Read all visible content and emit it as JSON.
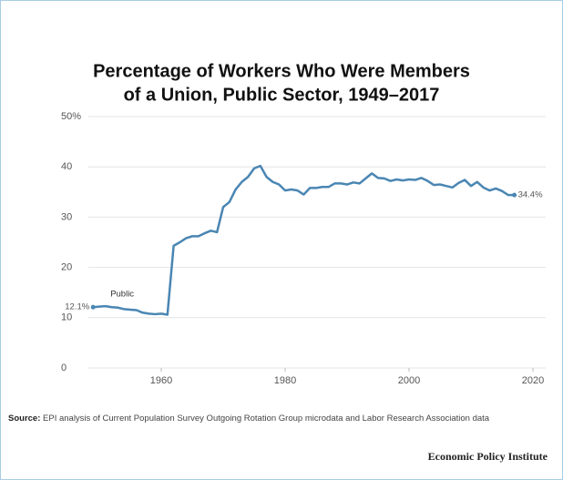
{
  "chart_data": {
    "type": "line",
    "title": [
      "Percentage of Workers Who Were Members",
      "of a Union, Public Sector, 1949–2017"
    ],
    "x": [
      1949,
      1950,
      1951,
      1952,
      1953,
      1954,
      1955,
      1956,
      1957,
      1958,
      1959,
      1960,
      1961,
      1962,
      1963,
      1964,
      1965,
      1966,
      1967,
      1968,
      1969,
      1970,
      1971,
      1972,
      1973,
      1974,
      1975,
      1976,
      1977,
      1978,
      1979,
      1980,
      1981,
      1982,
      1983,
      1984,
      1985,
      1986,
      1987,
      1988,
      1989,
      1990,
      1991,
      1992,
      1993,
      1994,
      1995,
      1996,
      1997,
      1998,
      1999,
      2000,
      2001,
      2002,
      2003,
      2004,
      2005,
      2006,
      2007,
      2008,
      2009,
      2010,
      2011,
      2012,
      2013,
      2014,
      2015,
      2016,
      2017
    ],
    "series": [
      {
        "name": "Public",
        "color": "#4a86b3",
        "values": [
          12.1,
          12.2,
          12.3,
          12.1,
          12.0,
          11.7,
          11.6,
          11.5,
          11.0,
          10.8,
          10.7,
          10.8,
          10.6,
          24.3,
          25.0,
          25.8,
          26.2,
          26.2,
          26.8,
          27.3,
          27.0,
          32.0,
          33.0,
          35.5,
          37.0,
          38.0,
          39.7,
          40.2,
          38.0,
          37.0,
          36.5,
          35.3,
          35.5,
          35.3,
          34.5,
          35.8,
          35.8,
          36.0,
          36.0,
          36.7,
          36.7,
          36.5,
          36.9,
          36.7,
          37.7,
          38.7,
          37.8,
          37.7,
          37.2,
          37.5,
          37.3,
          37.5,
          37.4,
          37.8,
          37.2,
          36.4,
          36.5,
          36.2,
          35.9,
          36.8,
          37.4,
          36.2,
          37.0,
          35.9,
          35.3,
          35.7,
          35.2,
          34.4,
          34.4
        ],
        "value_labels": [
          "12.1%",
          null,
          null,
          null,
          null,
          null,
          null,
          null,
          null,
          null,
          null,
          null,
          null,
          null,
          null,
          null,
          null,
          null,
          null,
          null,
          null,
          null,
          null,
          null,
          null,
          null,
          null,
          null,
          null,
          null,
          null,
          null,
          null,
          null,
          null,
          null,
          null,
          null,
          null,
          null,
          null,
          null,
          null,
          null,
          null,
          null,
          null,
          null,
          null,
          null,
          null,
          null,
          null,
          null,
          null,
          null,
          null,
          null,
          null,
          null,
          null,
          null,
          null,
          null,
          null,
          null,
          null,
          null,
          "34.4%"
        ]
      }
    ],
    "xlim": [
      1947,
      2022
    ],
    "xticks": [
      1960,
      1980,
      2000,
      2020
    ],
    "ylim": [
      0,
      50
    ],
    "yticks": [
      0,
      10,
      20,
      30,
      40,
      {
        "value": 50,
        "label": "50%"
      }
    ],
    "grid": true,
    "source_label": "Source:",
    "source": "EPI analysis of Current Population Survey Outgoing Rotation Group microdata and Labor Research Association data",
    "credit": "Economic Policy Institute"
  }
}
